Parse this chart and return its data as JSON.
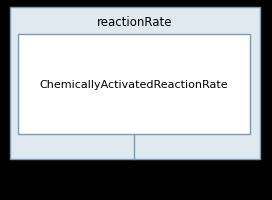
{
  "outer_label": "reactionRate",
  "inner_label": "ChemicallyActivatedReactionRate",
  "outer_bg": "#e0e8f0",
  "inner_bg": "#ffffff",
  "outer_border": "#7a9ab0",
  "inner_border": "#7a9ab0",
  "line_color": "#7a9ab0",
  "font_color": "#000000",
  "font_family": "DejaVu Sans",
  "font_size_outer": 8.5,
  "font_size_inner": 8.0,
  "bg_color": "#000000",
  "fig_width": 2.72,
  "fig_height": 2.01,
  "dpi": 100
}
